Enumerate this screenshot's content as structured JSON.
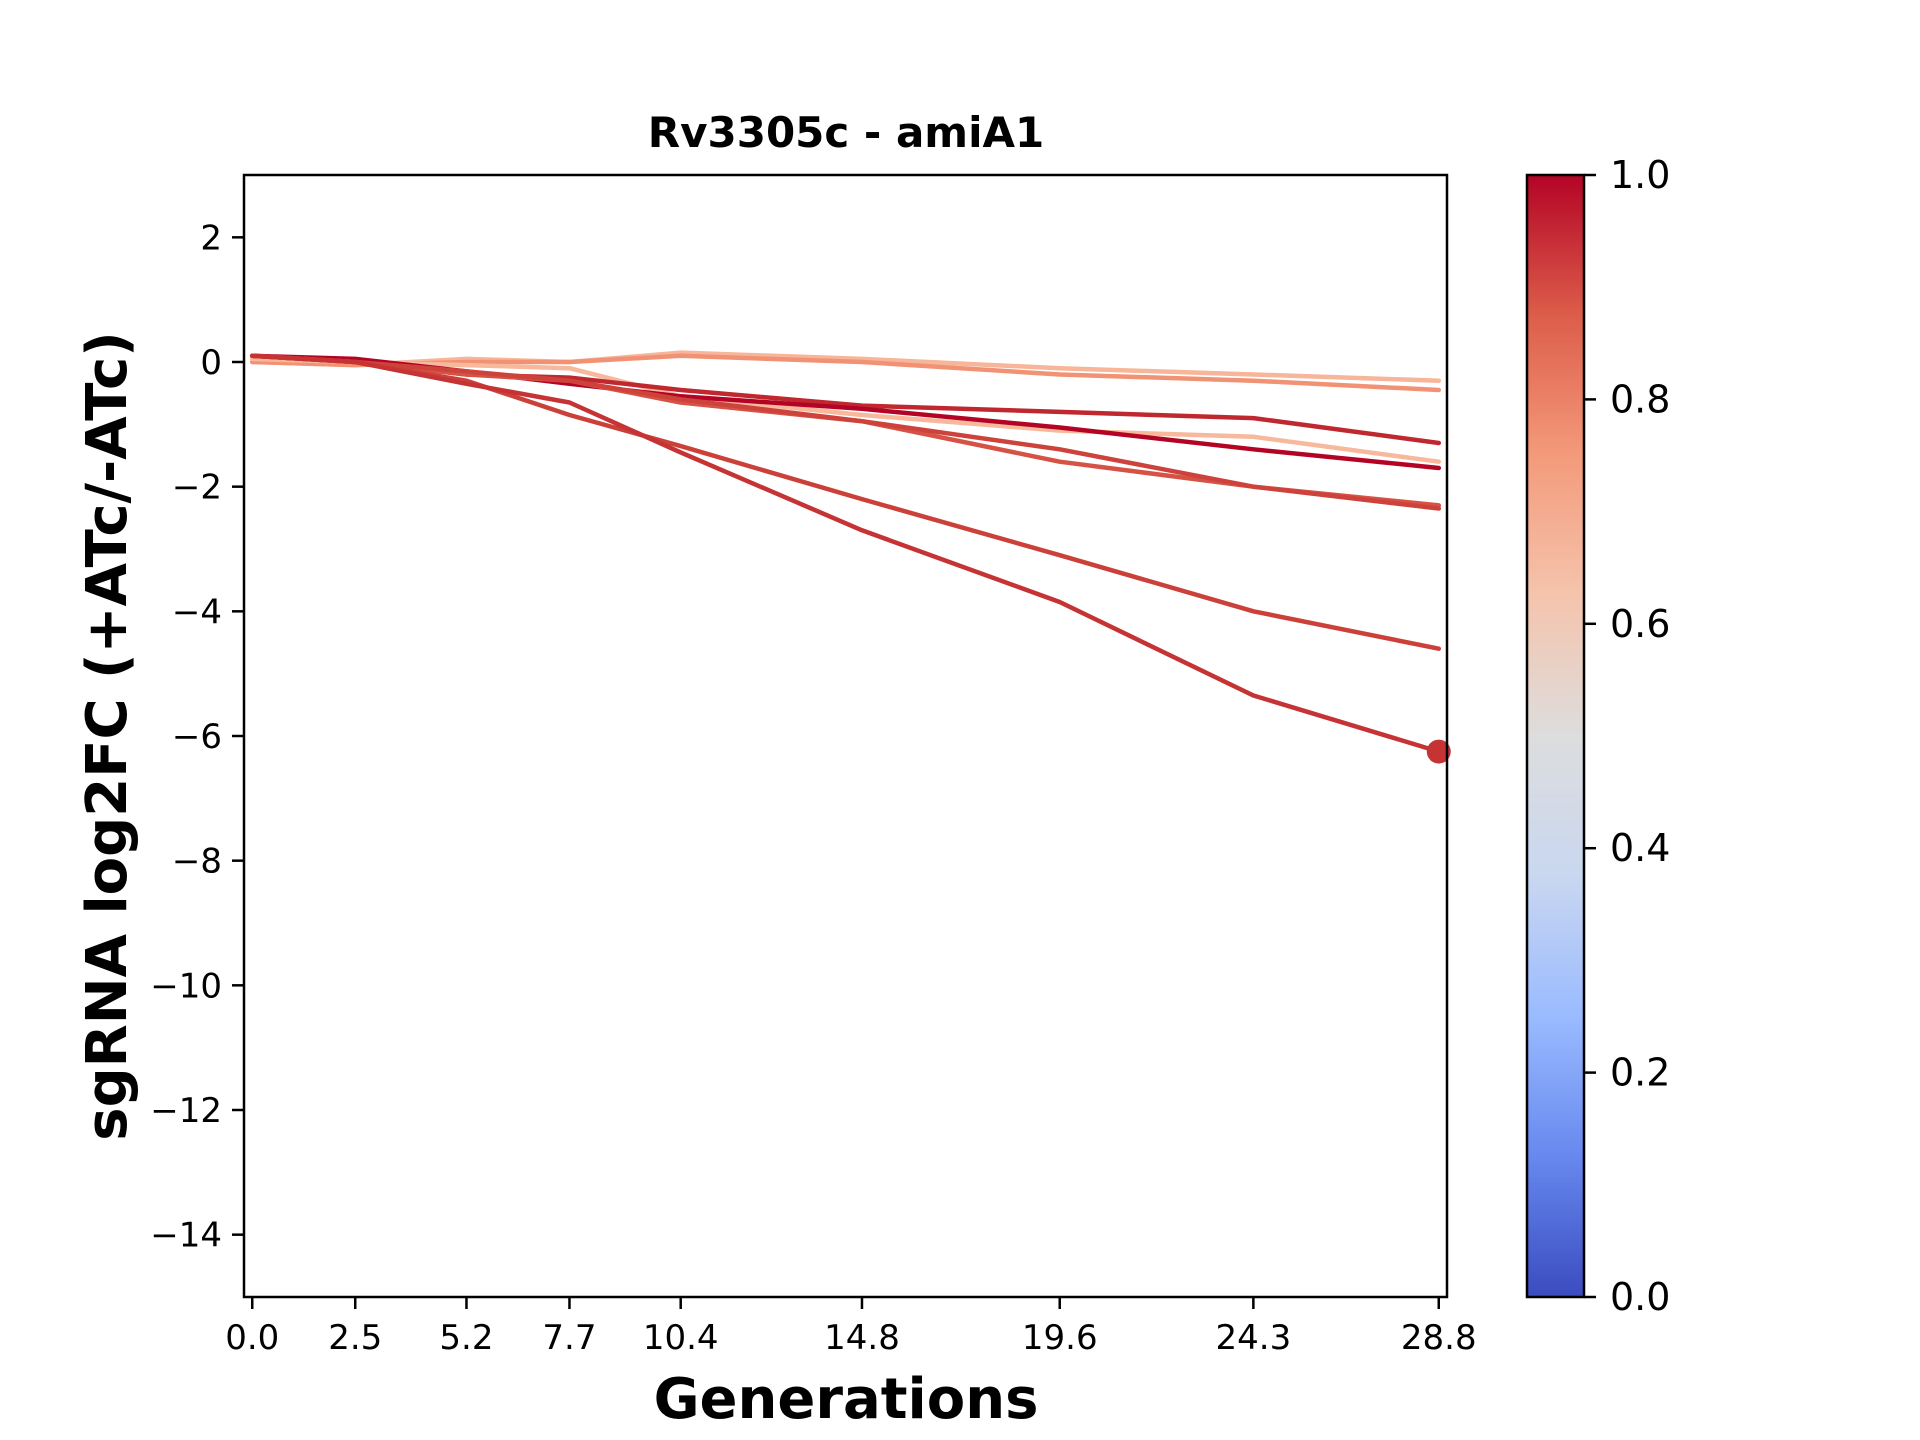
{
  "chart_data": {
    "type": "line",
    "title": "Rv3305c - amiA1",
    "xlabel": "Generations",
    "ylabel": "sgRNA log2FC (+ATc/-ATc)",
    "x": [
      0.0,
      2.5,
      5.2,
      7.7,
      10.4,
      14.8,
      19.6,
      24.3,
      28.8
    ],
    "x_tick_labels": [
      "0.0",
      "2.5",
      "5.2",
      "7.7",
      "10.4",
      "14.8",
      "19.6",
      "24.3",
      "28.8"
    ],
    "y_ticks": [
      2,
      0,
      -2,
      -4,
      -6,
      -8,
      -10,
      -12,
      -14
    ],
    "y_tick_labels": [
      "2",
      "0",
      "−2",
      "−4",
      "−6",
      "−8",
      "−10",
      "−12",
      "−14"
    ],
    "xlim": [
      -0.2,
      29.0
    ],
    "ylim": [
      -15,
      3
    ],
    "grid": false,
    "colorbar": {
      "range": [
        0.0,
        1.0
      ],
      "ticks": [
        0.0,
        0.2,
        0.4,
        0.6,
        0.8,
        1.0
      ],
      "tick_labels": [
        "0.0",
        "0.2",
        "0.4",
        "0.6",
        "0.8",
        "1.0"
      ],
      "colormap": "coolwarm",
      "stops": [
        "#3b4cc0",
        "#6788ee",
        "#9abbff",
        "#c9d7f0",
        "#dddddd",
        "#f5c4ad",
        "#f49a7b",
        "#dc5d4a",
        "#b40426"
      ]
    },
    "series": [
      {
        "values": [
          0.0,
          -0.05,
          0.05,
          0.0,
          0.15,
          0.05,
          -0.1,
          -0.2,
          -0.3
        ],
        "color": "#f7b599"
      },
      {
        "values": [
          0.0,
          -0.05,
          0.0,
          0.0,
          0.1,
          0.0,
          -0.2,
          -0.3,
          -0.45
        ],
        "color": "#f29274"
      },
      {
        "values": [
          0.05,
          0.0,
          -0.05,
          -0.1,
          -0.55,
          -0.85,
          -1.1,
          -1.2,
          -1.6
        ],
        "color": "#f7b89c"
      },
      {
        "values": [
          0.1,
          0.0,
          -0.2,
          -0.25,
          -0.45,
          -0.7,
          -0.8,
          -0.9,
          -1.3
        ],
        "color": "#c0282f"
      },
      {
        "values": [
          0.1,
          0.05,
          -0.15,
          -0.35,
          -0.55,
          -0.75,
          -1.05,
          -1.4,
          -1.7
        ],
        "color": "#b40426"
      },
      {
        "values": [
          0.1,
          0.0,
          -0.2,
          -0.3,
          -0.65,
          -0.95,
          -1.6,
          -2.0,
          -2.3
        ],
        "color": "#d65244"
      },
      {
        "values": [
          0.1,
          0.0,
          -0.15,
          -0.3,
          -0.6,
          -0.95,
          -1.4,
          -2.0,
          -2.35
        ],
        "color": "#cd423b"
      },
      {
        "values": [
          0.1,
          0.0,
          -0.3,
          -0.85,
          -1.35,
          -2.2,
          -3.1,
          -4.0,
          -4.6
        ],
        "color": "#cc403a"
      },
      {
        "values": [
          0.1,
          0.0,
          -0.35,
          -0.65,
          -1.45,
          -2.7,
          -3.85,
          -5.35,
          -6.25
        ],
        "color": "#c53334",
        "end_marker": true
      }
    ]
  }
}
